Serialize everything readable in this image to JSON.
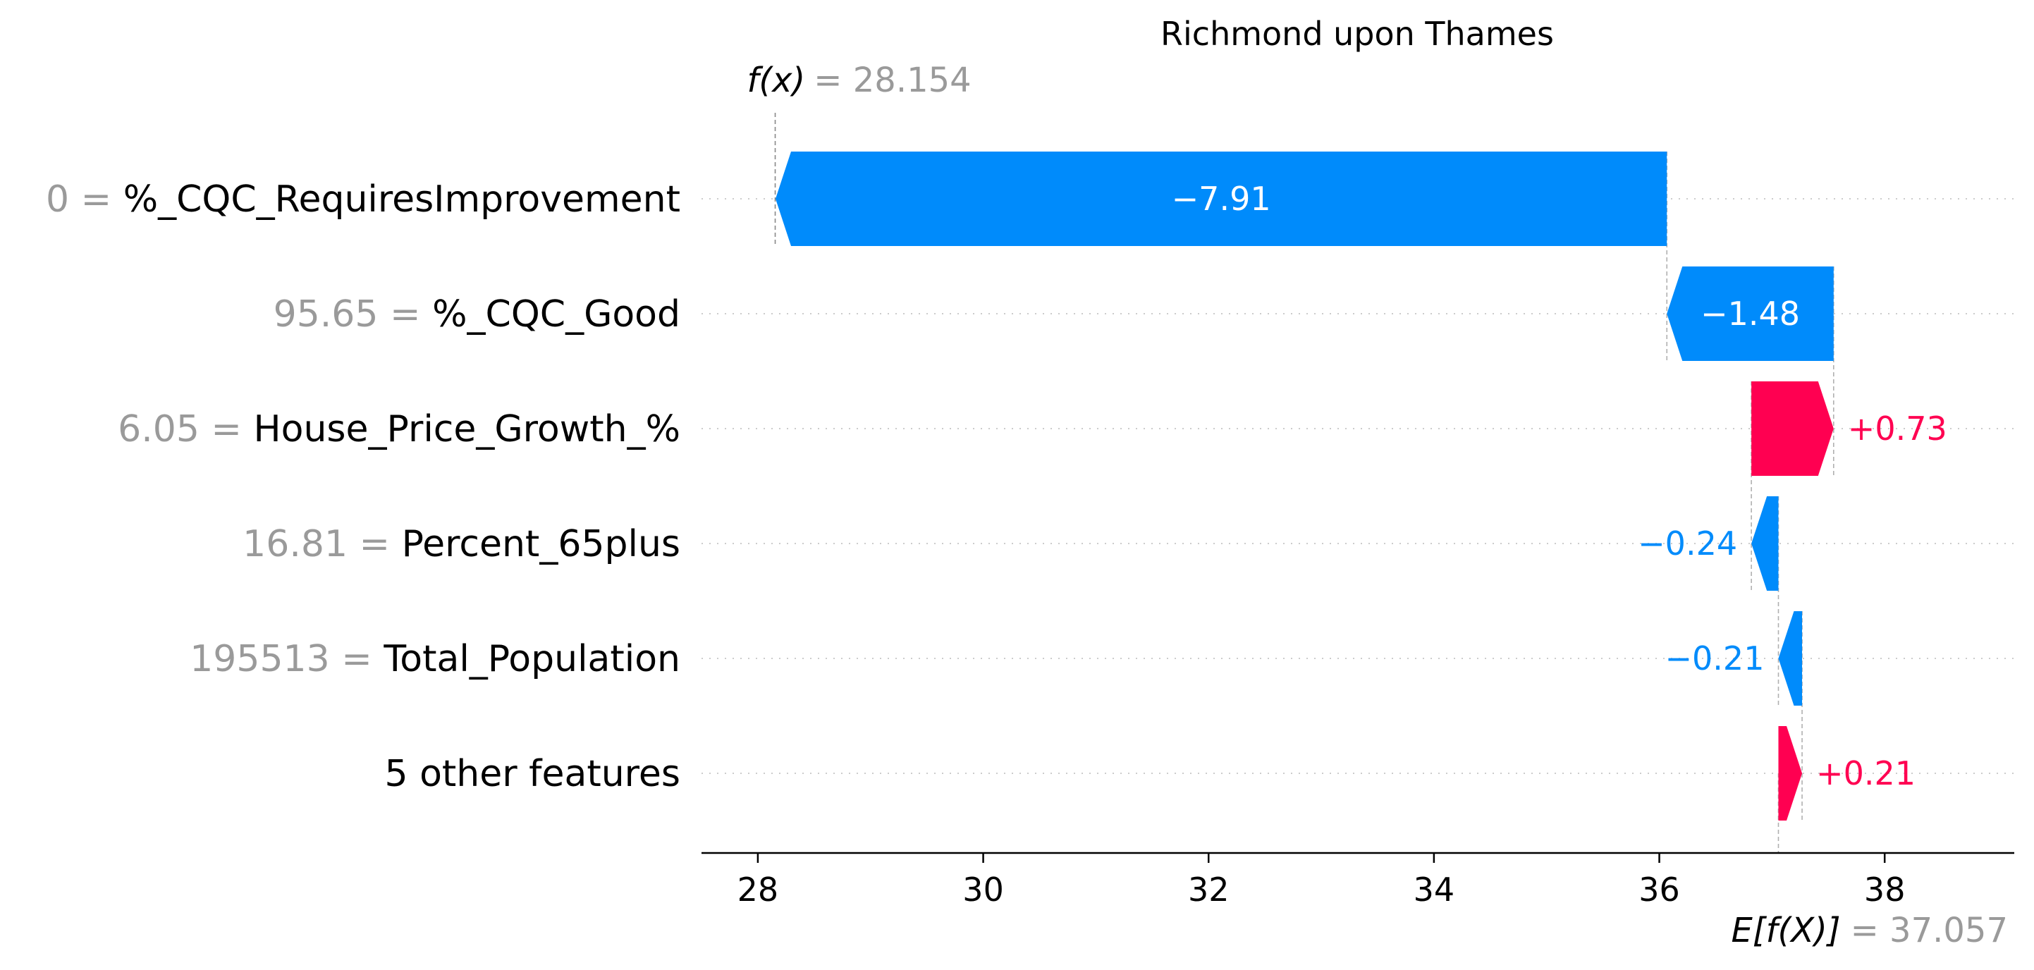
{
  "chart_data": {
    "type": "waterfall",
    "title": "Richmond upon Thames",
    "base_value": 37.057,
    "base_label": "E[f(X)]",
    "base_value_text": "= 37.057",
    "output_value": 28.154,
    "output_label": "f(x)",
    "output_value_text": "= 28.154",
    "xlim": [
      27.5,
      39.15
    ],
    "xticks": [
      28,
      30,
      32,
      34,
      36,
      38
    ],
    "colors": {
      "positive": "#ff0051",
      "negative": "#008bfb",
      "value_text": "#9a9a9a"
    },
    "features": [
      {
        "value": "0",
        "name": "%_CQC_RequiresImprovement",
        "contribution": -7.91,
        "label": "−7.91"
      },
      {
        "value": "95.65",
        "name": "%_CQC_Good",
        "contribution": -1.48,
        "label": "−1.48"
      },
      {
        "value": "6.05",
        "name": "House_Price_Growth_%",
        "contribution": 0.73,
        "label": "+0.73"
      },
      {
        "value": "16.81",
        "name": "Percent_65plus",
        "contribution": -0.24,
        "label": "−0.24"
      },
      {
        "value": "195513",
        "name": "Total_Population",
        "contribution": -0.21,
        "label": "−0.21"
      },
      {
        "value": "",
        "name": "5 other features",
        "contribution": 0.21,
        "label": "+0.21"
      }
    ]
  }
}
